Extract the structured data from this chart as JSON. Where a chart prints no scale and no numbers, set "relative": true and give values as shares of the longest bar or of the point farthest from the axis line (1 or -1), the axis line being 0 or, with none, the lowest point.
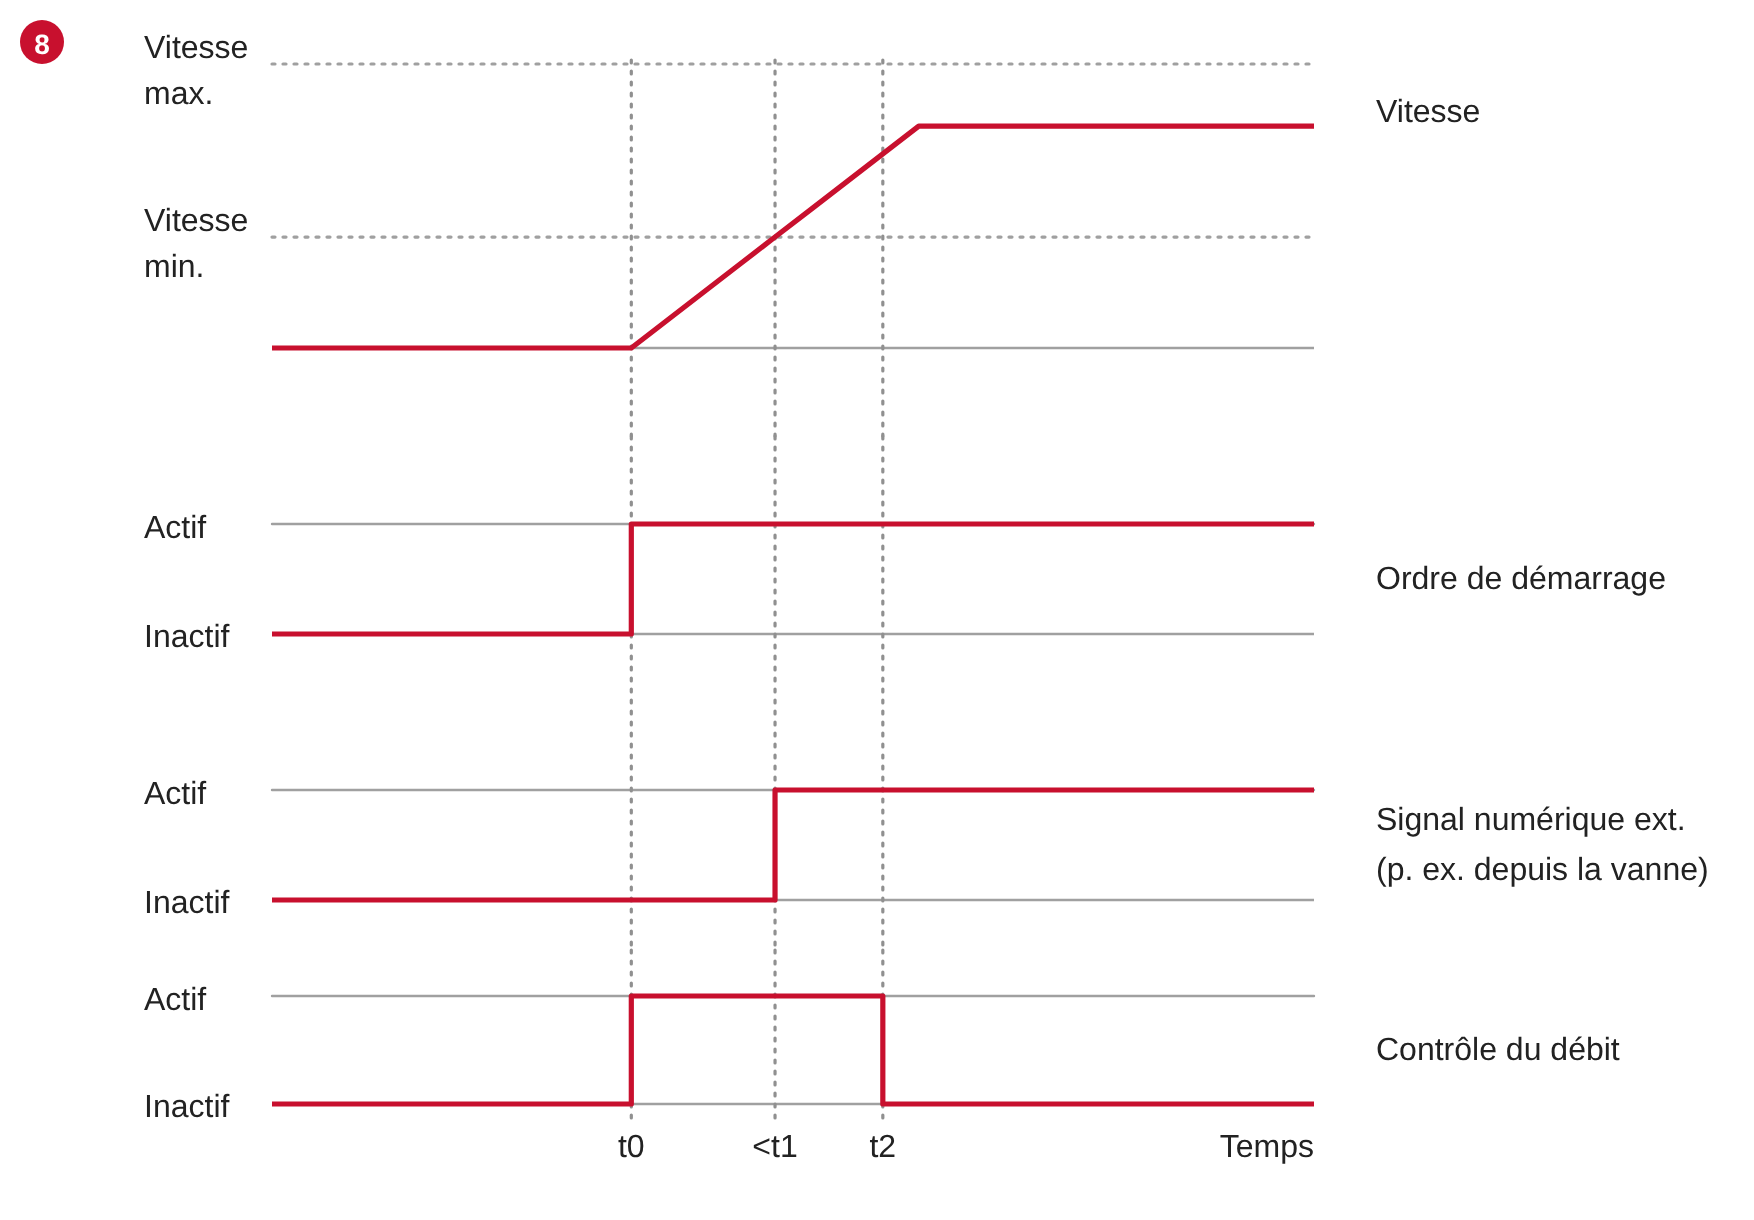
{
  "chart_data": [
    {
      "type": "line",
      "relative": true,
      "categories": [
        null,
        null,
        null,
        null,
        null,
        null,
        null,
        null,
        null,
        null,
        "t0",
        null,
        null,
        null,
        "<t1",
        null,
        null,
        "t2",
        null,
        null,
        null,
        null,
        null,
        null,
        null,
        null,
        null,
        null,
        null,
        null
      ],
      "tick_labels": false,
      "marker": "none",
      "annotations": [
        "8"
      ],
      "ref_lines": [
        {
          "axis": "y",
          "value": 0.5,
          "label": "Vitesse min.",
          "line_style": "dotted",
          "color": "#a0a0a0"
        },
        {
          "axis": "y",
          "value": 1.28,
          "label": "Vitesse max.",
          "line_style": "dotted",
          "color": "#a0a0a0"
        },
        {
          "axis": "x",
          "value": "t0",
          "line_style": "dotted",
          "color": "#909090"
        },
        {
          "axis": "x",
          "value": "<t1",
          "line_style": "dotted",
          "color": "#909090"
        },
        {
          "axis": "x",
          "value": "t2",
          "line_style": "dotted",
          "color": "#909090"
        }
      ],
      "series": [
        {
          "name": "Vitesse",
          "color": "#c8102e",
          "values": [
            0,
            0,
            0,
            0,
            0,
            0,
            0,
            0,
            0,
            0,
            0,
            0.125,
            0.25,
            0.375,
            0.5,
            0.625,
            0.75,
            0.875,
            1,
            1,
            1,
            1,
            1,
            1,
            1,
            1,
            1,
            1,
            1,
            1
          ]
        }
      ]
    },
    {
      "type": "step",
      "relative": true,
      "categories": [
        null,
        null,
        null,
        null,
        null,
        null,
        null,
        null,
        null,
        null,
        "t0",
        null,
        null,
        null,
        "<t1",
        null,
        null,
        "t2",
        null,
        null,
        null,
        null,
        null,
        null,
        null,
        null,
        null,
        null,
        null,
        null
      ],
      "tick_labels": false,
      "marker": "none",
      "annotations": [
        "Inactif"
      ],
      "ref_lines": [
        {
          "axis": "y",
          "value": 1,
          "label": "Actif",
          "line_style": "solid",
          "color": "#a0a0a0"
        },
        {
          "axis": "x",
          "value": "t0",
          "line_style": "dotted",
          "color": "#909090"
        },
        {
          "axis": "x",
          "value": "<t1",
          "line_style": "dotted",
          "color": "#909090"
        },
        {
          "axis": "x",
          "value": "t2",
          "line_style": "dotted",
          "color": "#909090"
        }
      ],
      "series": [
        {
          "name": "Ordre de démarrage",
          "color": "#c8102e",
          "values": [
            0,
            0,
            0,
            0,
            0,
            0,
            0,
            0,
            0,
            0,
            1,
            1,
            1,
            1,
            1,
            1,
            1,
            1,
            1,
            1,
            1,
            1,
            1,
            1,
            1,
            1,
            1,
            1,
            1,
            1
          ]
        }
      ]
    },
    {
      "type": "step",
      "relative": true,
      "categories": [
        null,
        null,
        null,
        null,
        null,
        null,
        null,
        null,
        null,
        null,
        "t0",
        null,
        null,
        null,
        "<t1",
        null,
        null,
        "t2",
        null,
        null,
        null,
        null,
        null,
        null,
        null,
        null,
        null,
        null,
        null,
        null
      ],
      "tick_labels": false,
      "marker": "none",
      "annotations": [
        "Inactif"
      ],
      "ref_lines": [
        {
          "axis": "y",
          "value": 1,
          "label": "Actif",
          "line_style": "solid",
          "color": "#a0a0a0"
        },
        {
          "axis": "x",
          "value": "t0",
          "line_style": "dotted",
          "color": "#909090"
        },
        {
          "axis": "x",
          "value": "<t1",
          "line_style": "dotted",
          "color": "#909090"
        },
        {
          "axis": "x",
          "value": "t2",
          "line_style": "dotted",
          "color": "#909090"
        }
      ],
      "series": [
        {
          "name": "Signal numérique ext. (p. ex. depuis la vanne)",
          "color": "#c8102e",
          "values": [
            0,
            0,
            0,
            0,
            0,
            0,
            0,
            0,
            0,
            0,
            0,
            0,
            0,
            0,
            1,
            1,
            1,
            1,
            1,
            1,
            1,
            1,
            1,
            1,
            1,
            1,
            1,
            1,
            1,
            1
          ]
        }
      ]
    },
    {
      "type": "step",
      "relative": true,
      "categories": [
        null,
        null,
        null,
        null,
        null,
        null,
        null,
        null,
        null,
        null,
        "t0",
        null,
        null,
        null,
        "<t1",
        null,
        null,
        "t2",
        null,
        null,
        null,
        null,
        null,
        null,
        null,
        null,
        null,
        null,
        null,
        null
      ],
      "xlabel": "Temps",
      "tick_labels": "x",
      "marker": "none",
      "annotations": [
        "Inactif"
      ],
      "ref_lines": [
        {
          "axis": "y",
          "value": 1,
          "label": "Actif",
          "line_style": "solid",
          "color": "#a0a0a0"
        },
        {
          "axis": "x",
          "value": "t0",
          "line_style": "dotted",
          "color": "#909090"
        },
        {
          "axis": "x",
          "value": "<t1",
          "line_style": "dotted",
          "color": "#909090"
        },
        {
          "axis": "x",
          "value": "t2",
          "line_style": "dotted",
          "color": "#909090"
        }
      ],
      "series": [
        {
          "name": "Contrôle du débit",
          "color": "#c8102e",
          "values": [
            0,
            0,
            0,
            0,
            0,
            0,
            0,
            0,
            0,
            0,
            1,
            1,
            1,
            1,
            1,
            1,
            1,
            0,
            0,
            0,
            0,
            0,
            0,
            0,
            0,
            0,
            0,
            0,
            0,
            0
          ]
        }
      ]
    }
  ]
}
